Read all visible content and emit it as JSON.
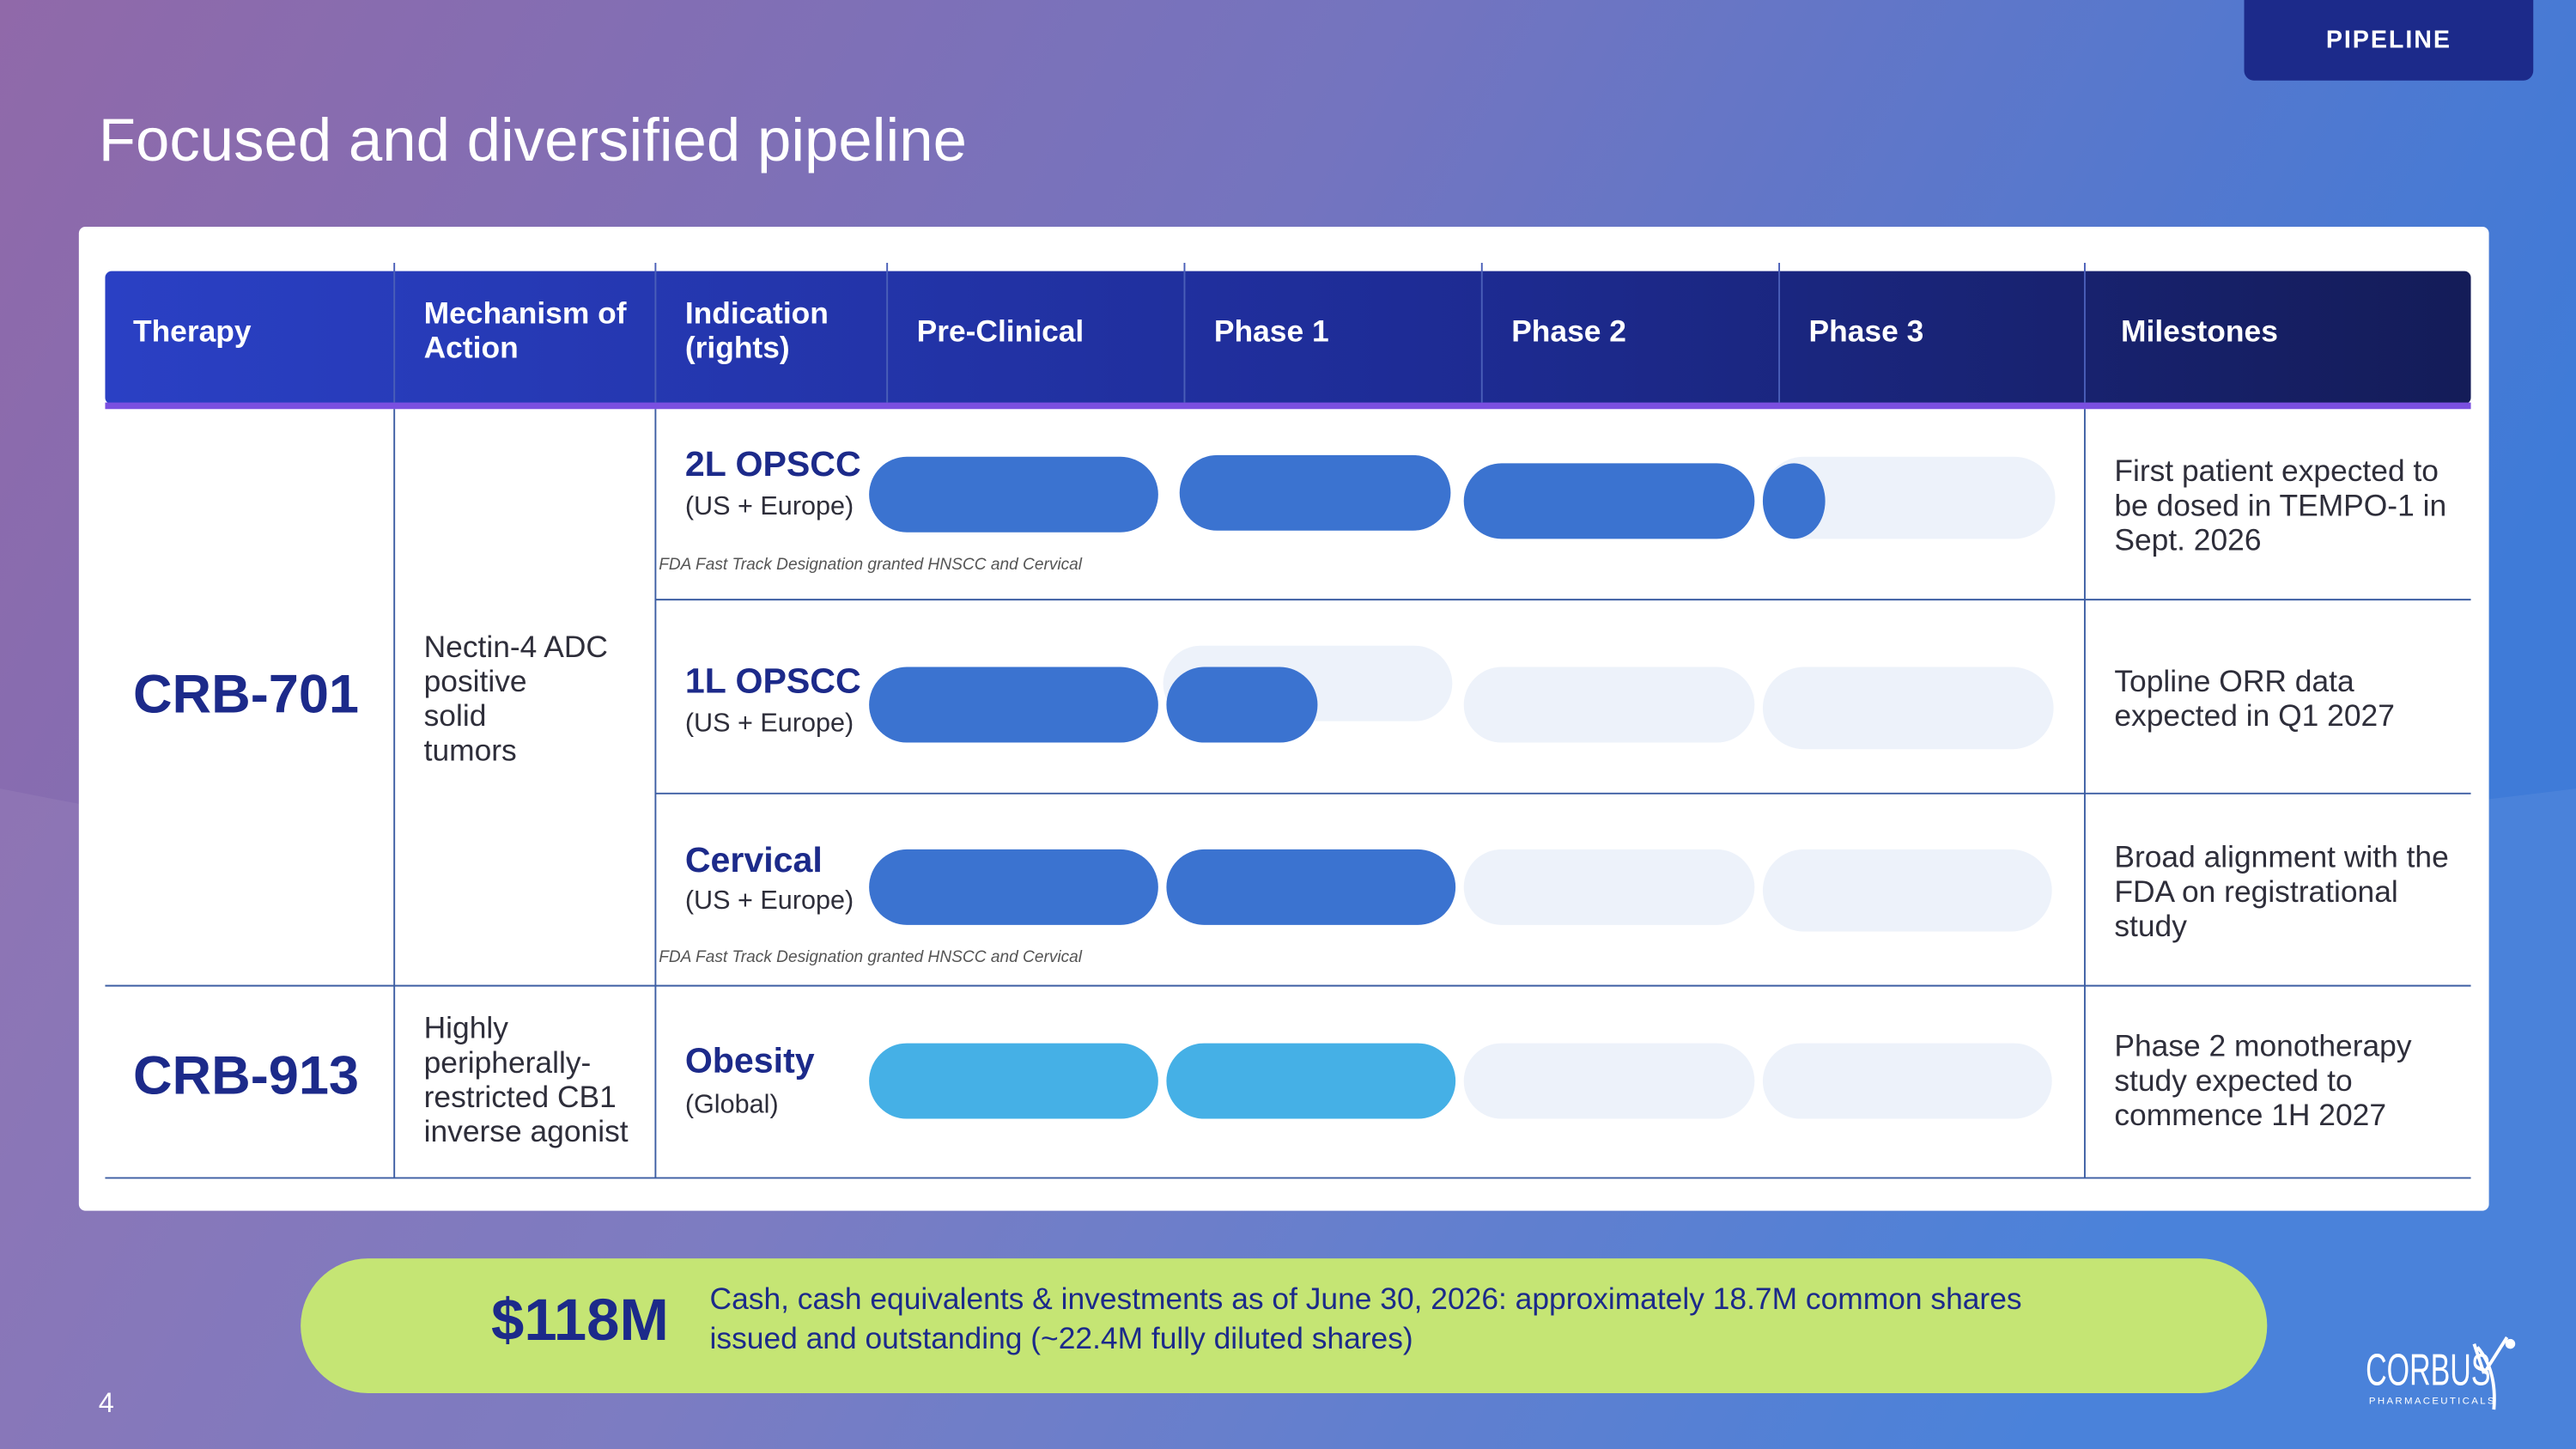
{
  "header": {
    "tag": "PIPELINE",
    "title": "Focused and diversified pipeline"
  },
  "table": {
    "columns": [
      [
        "Therapy"
      ],
      [
        "Mechanism of",
        "Action"
      ],
      [
        "Indication",
        "(rights)"
      ],
      [
        "Pre-Clinical"
      ],
      [
        "Phase 1"
      ],
      [
        "Phase 2"
      ],
      [
        "Phase 3"
      ],
      [
        "Milestones"
      ]
    ],
    "programs": [
      {
        "therapy": "CRB-701",
        "mechanism": [
          "Nectin-4 ADC",
          "positive",
          "solid",
          "tumors"
        ],
        "indications": [
          {
            "name": "2L OPSCC",
            "rights": "(US + Europe)",
            "note": "FDA Fast Track Designation granted HNSCC and Cervical",
            "milestone": [
              "First patient expected to",
              "be dosed in TEMPO-1 in",
              "Sept. 2026"
            ]
          },
          {
            "name": "1L OPSCC",
            "rights": "(US + Europe)",
            "milestone": [
              "Topline ORR data",
              "expected in Q1 2027"
            ]
          },
          {
            "name": "Cervical",
            "rights": "(US + Europe)",
            "note": "FDA Fast Track Designation granted HNSCC and Cervical",
            "milestone": [
              "Broad alignment with the",
              "FDA on registrational",
              "study"
            ]
          }
        ]
      },
      {
        "therapy": "CRB-913",
        "mechanism": [
          "Highly",
          "peripherally-",
          "restricted CB1",
          "inverse agonist"
        ],
        "indications": [
          {
            "name": "Obesity",
            "rights": "(Global)",
            "milestone": [
              "Phase 2 monotherapy",
              "study expected to",
              "commence 1H 2027"
            ]
          }
        ]
      }
    ]
  },
  "footer": {
    "amount": "$118M",
    "text": [
      "Cash, cash equivalents & investments as of June 30, 2026: approximately 18.7M common shares",
      "issued and outstanding (~22.4M fully diluted shares)"
    ],
    "page": 4,
    "logo": "CORBUS",
    "logo_sub": "PHARMACEUTICALS"
  }
}
